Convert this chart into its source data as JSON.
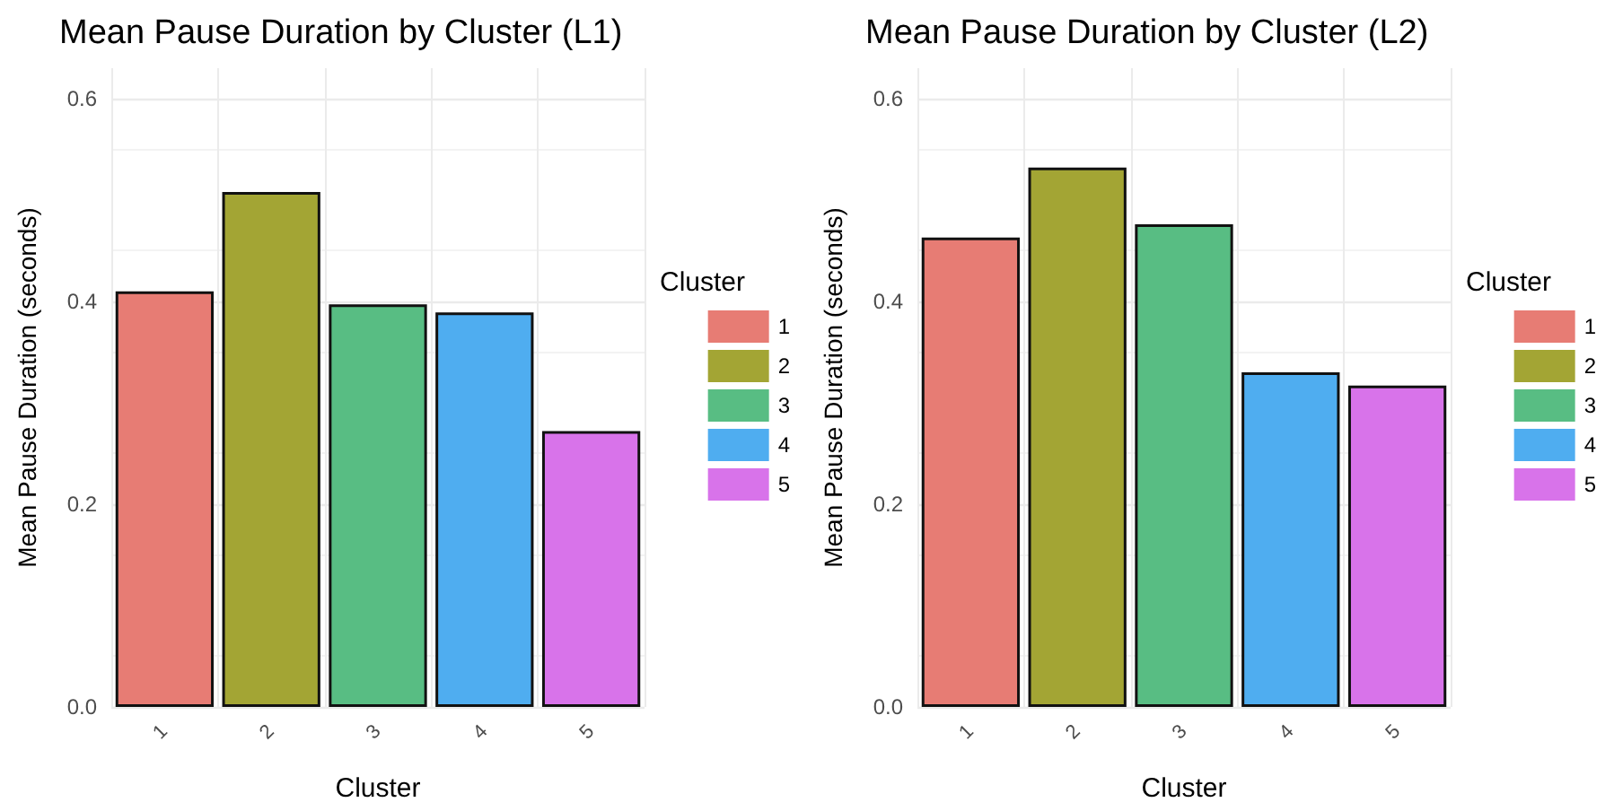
{
  "chart_data": [
    {
      "type": "bar",
      "title": "Mean Pause Duration by Cluster (L1)",
      "xlabel": "Cluster",
      "ylabel": "Mean Pause Duration (seconds)",
      "legend_title": "Cluster",
      "categories": [
        "1",
        "2",
        "3",
        "4",
        "5"
      ],
      "series": [
        {
          "name": "1",
          "color": "#e77c74",
          "values": [
            0.41,
            null,
            null,
            null,
            null
          ]
        },
        {
          "name": "2",
          "color": "#a3a534",
          "values": [
            null,
            0.508,
            null,
            null,
            null
          ]
        },
        {
          "name": "3",
          "color": "#58bd83",
          "values": [
            null,
            null,
            0.397,
            null,
            null
          ]
        },
        {
          "name": "4",
          "color": "#4fadf0",
          "values": [
            null,
            null,
            null,
            0.389,
            null
          ]
        },
        {
          "name": "5",
          "color": "#d873ea",
          "values": [
            null,
            null,
            null,
            null,
            0.272
          ]
        }
      ],
      "ylim": [
        0,
        0.63
      ],
      "yticks": [
        {
          "value": 0,
          "label": "0.0"
        },
        0.2,
        0.4,
        0.6
      ],
      "grid": true,
      "legend": "right"
    },
    {
      "type": "bar",
      "title": "Mean Pause Duration by Cluster (L2)",
      "xlabel": "Cluster",
      "ylabel": "Mean Pause Duration (seconds)",
      "legend_title": "Cluster",
      "categories": [
        "1",
        "2",
        "3",
        "4",
        "5"
      ],
      "series": [
        {
          "name": "1",
          "color": "#e77c74",
          "values": [
            0.463,
            null,
            null,
            null,
            null
          ]
        },
        {
          "name": "2",
          "color": "#a3a534",
          "values": [
            null,
            0.532,
            null,
            null,
            null
          ]
        },
        {
          "name": "3",
          "color": "#58bd83",
          "values": [
            null,
            null,
            0.476,
            null,
            null
          ]
        },
        {
          "name": "4",
          "color": "#4fadf0",
          "values": [
            null,
            null,
            null,
            0.33,
            null
          ]
        },
        {
          "name": "5",
          "color": "#d873ea",
          "values": [
            null,
            null,
            null,
            null,
            0.317
          ]
        }
      ],
      "ylim": [
        0,
        0.63
      ],
      "yticks": [
        {
          "value": 0,
          "label": "0.0"
        },
        0.2,
        0.4,
        0.6
      ],
      "grid": true,
      "legend": "right"
    }
  ]
}
